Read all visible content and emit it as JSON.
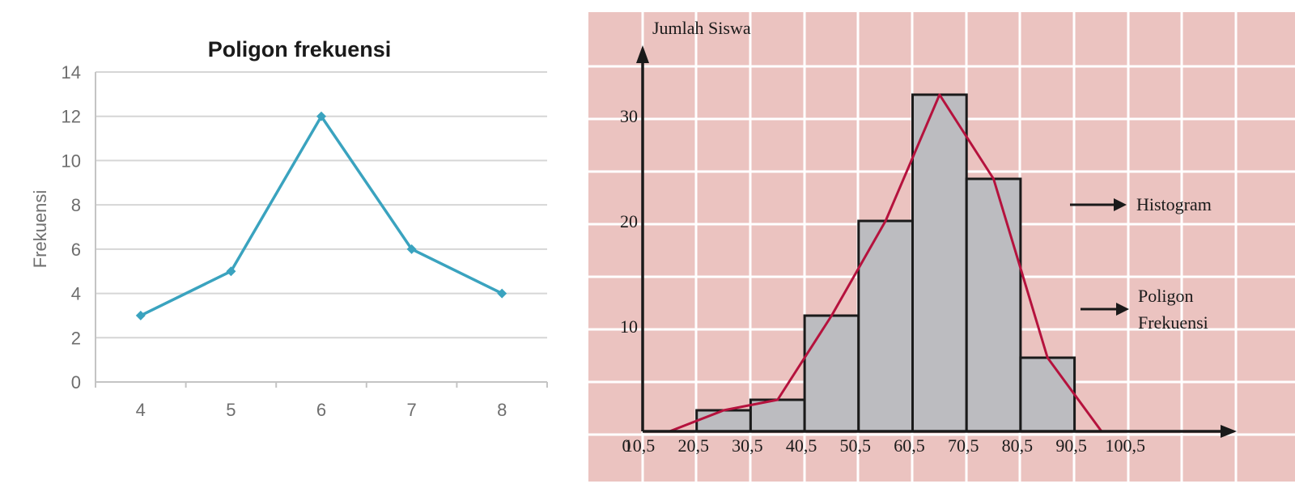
{
  "chart_data": [
    {
      "type": "line",
      "title": "Poligon frekuensi",
      "xlabel": "",
      "ylabel": "Frekuensi",
      "x": [
        4,
        5,
        6,
        7,
        8
      ],
      "series": [
        {
          "values": [
            3,
            5,
            12,
            6,
            4
          ],
          "color": "#3aa3bf"
        }
      ],
      "xlim": [
        3.5,
        8.5
      ],
      "ylim": [
        0,
        14
      ],
      "yticks": [
        0,
        2,
        4,
        6,
        8,
        10,
        12,
        14
      ],
      "xticks": [
        4,
        5,
        6,
        7,
        8
      ],
      "grid": true,
      "legend": "none"
    },
    {
      "type": "bar",
      "title": "",
      "xlabel": "",
      "ylabel": "Jumlah Siswa",
      "origin_label": "0",
      "x_tick_labels": [
        "10,5",
        "20,5",
        "30,5",
        "40,5",
        "50,5",
        "60,5",
        "70,5",
        "80,5",
        "90,5",
        "100,5"
      ],
      "x_ticks": [
        10.5,
        20.5,
        30.5,
        40.5,
        50.5,
        60.5,
        70.5,
        80.5,
        90.5,
        100.5
      ],
      "y_ticks": [
        10,
        20,
        30
      ],
      "ylim": [
        0,
        35
      ],
      "bars": [
        {
          "x0": 20.5,
          "x1": 30.5,
          "value": 2
        },
        {
          "x0": 30.5,
          "x1": 40.5,
          "value": 3
        },
        {
          "x0": 40.5,
          "x1": 50.5,
          "value": 11
        },
        {
          "x0": 50.5,
          "x1": 60.5,
          "value": 20
        },
        {
          "x0": 60.5,
          "x1": 70.5,
          "value": 32
        },
        {
          "x0": 70.5,
          "x1": 80.5,
          "value": 24
        },
        {
          "x0": 80.5,
          "x1": 90.5,
          "value": 7
        }
      ],
      "polygon": {
        "x": [
          15.5,
          25.5,
          35.5,
          45.5,
          55.5,
          65.5,
          75.5,
          85.5,
          95.5
        ],
        "y": [
          0,
          2,
          3,
          11,
          20,
          32,
          24,
          7,
          0
        ]
      },
      "annotations": [
        {
          "text": "Histogram"
        },
        {
          "text": "Poligon"
        },
        {
          "text": "Frekuensi"
        }
      ],
      "colors": {
        "background": "#ebc3c0",
        "grid": "#ffffff",
        "bar_fill": "#bcbcc0",
        "bar_stroke": "#1a1a1a",
        "polygon": "#b5123d",
        "axis": "#1a1a1a"
      },
      "grid": true
    }
  ]
}
